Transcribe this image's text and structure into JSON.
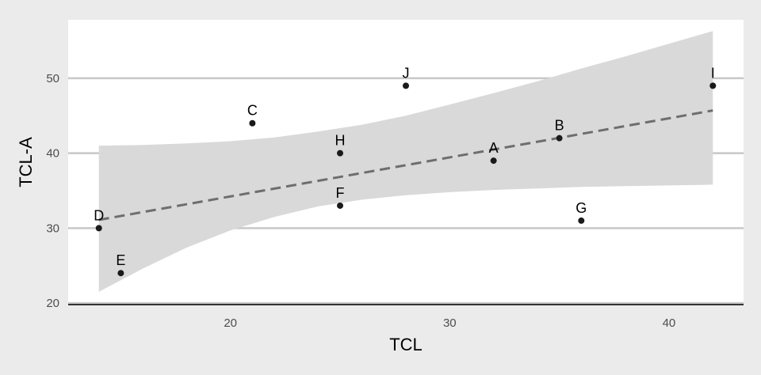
{
  "chart_data": {
    "type": "scatter",
    "title": "",
    "xlabel": "TCL",
    "ylabel": "TCL-A",
    "xlim": [
      12.6,
      43.4
    ],
    "ylim": [
      19.8,
      57.8
    ],
    "x_ticks": [
      20,
      30,
      40
    ],
    "y_ticks": [
      20,
      30,
      40,
      50
    ],
    "grid": "horizontal",
    "points": [
      {
        "label": "A",
        "x": 32,
        "y": 39
      },
      {
        "label": "B",
        "x": 35,
        "y": 42
      },
      {
        "label": "C",
        "x": 21,
        "y": 44
      },
      {
        "label": "D",
        "x": 14,
        "y": 30
      },
      {
        "label": "E",
        "x": 15,
        "y": 24
      },
      {
        "label": "F",
        "x": 25,
        "y": 33
      },
      {
        "label": "G",
        "x": 36,
        "y": 31
      },
      {
        "label": "H",
        "x": 25,
        "y": 40
      },
      {
        "label": "I",
        "x": 42,
        "y": 49
      },
      {
        "label": "J",
        "x": 28,
        "y": 49
      }
    ],
    "trend_line": {
      "style": "dashed",
      "x": [
        14,
        42
      ],
      "y": [
        31.1,
        45.7
      ]
    },
    "confidence_band": {
      "x": [
        14,
        16,
        18,
        20,
        22,
        24,
        26,
        28,
        30,
        32,
        34,
        36,
        38,
        40,
        42
      ],
      "lower": [
        21.5,
        24.6,
        27.4,
        29.7,
        31.5,
        32.9,
        33.8,
        34.4,
        34.8,
        35.1,
        35.3,
        35.5,
        35.6,
        35.7,
        35.8
      ],
      "upper": [
        41.0,
        41.1,
        41.3,
        41.6,
        42.1,
        42.9,
        43.8,
        45.0,
        46.5,
        48.0,
        49.6,
        51.3,
        52.9,
        54.6,
        56.3
      ]
    },
    "colors": {
      "background": "#ebebeb",
      "panel": "#ffffff",
      "grid": "#c8c8c8",
      "band": "#d9d9d9",
      "trend": "#6e6e6e",
      "point": "#1a1a1a",
      "axis": "#333333"
    }
  }
}
